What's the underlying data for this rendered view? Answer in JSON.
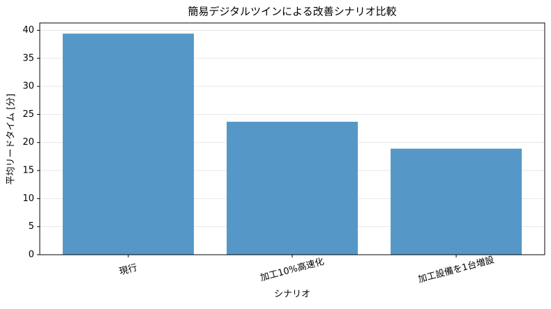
{
  "chart_data": {
    "type": "bar",
    "title": "簡易デジタルツインによる改善シナリオ比較",
    "x_label": "シナリオ",
    "y_label": "平均リードタイム [分]",
    "categories": [
      "現行",
      "加工10%高速化",
      "加工設備を1台増設"
    ],
    "values": [
      39.4,
      23.7,
      18.9
    ],
    "color": "#5598c7",
    "ylim": [
      0,
      41.3
    ],
    "yticks": [
      0,
      5,
      10,
      15,
      20,
      25,
      30,
      35,
      40
    ],
    "grid": true
  }
}
